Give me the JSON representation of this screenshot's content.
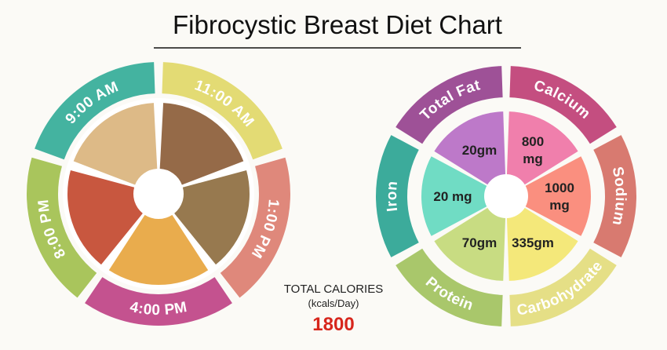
{
  "header": {
    "title": "Fibrocystic Breast Diet Chart"
  },
  "meal_wheel": {
    "meals": [
      {
        "time": "9:00 AM"
      },
      {
        "time": "11:00 AM"
      },
      {
        "time": "1:00 PM"
      },
      {
        "time": "4:00 PM"
      },
      {
        "time": "8:00 PM"
      }
    ]
  },
  "calories": {
    "label": "TOTAL CALORIES",
    "unit": "(kcals/Day)",
    "value": "1800"
  },
  "nutrient_wheel": {
    "nutrients": [
      {
        "name": "Total Fat",
        "amount": [
          "20gm"
        ]
      },
      {
        "name": "Calcium",
        "amount": [
          "800",
          "mg"
        ]
      },
      {
        "name": "Sodium",
        "amount": [
          "1000",
          "mg"
        ]
      },
      {
        "name": "Carbohydrate",
        "amount": [
          "335gm"
        ]
      },
      {
        "name": "Protein",
        "amount": [
          "70gm"
        ]
      },
      {
        "name": "Iron",
        "amount": [
          "20 mg"
        ]
      }
    ]
  }
}
